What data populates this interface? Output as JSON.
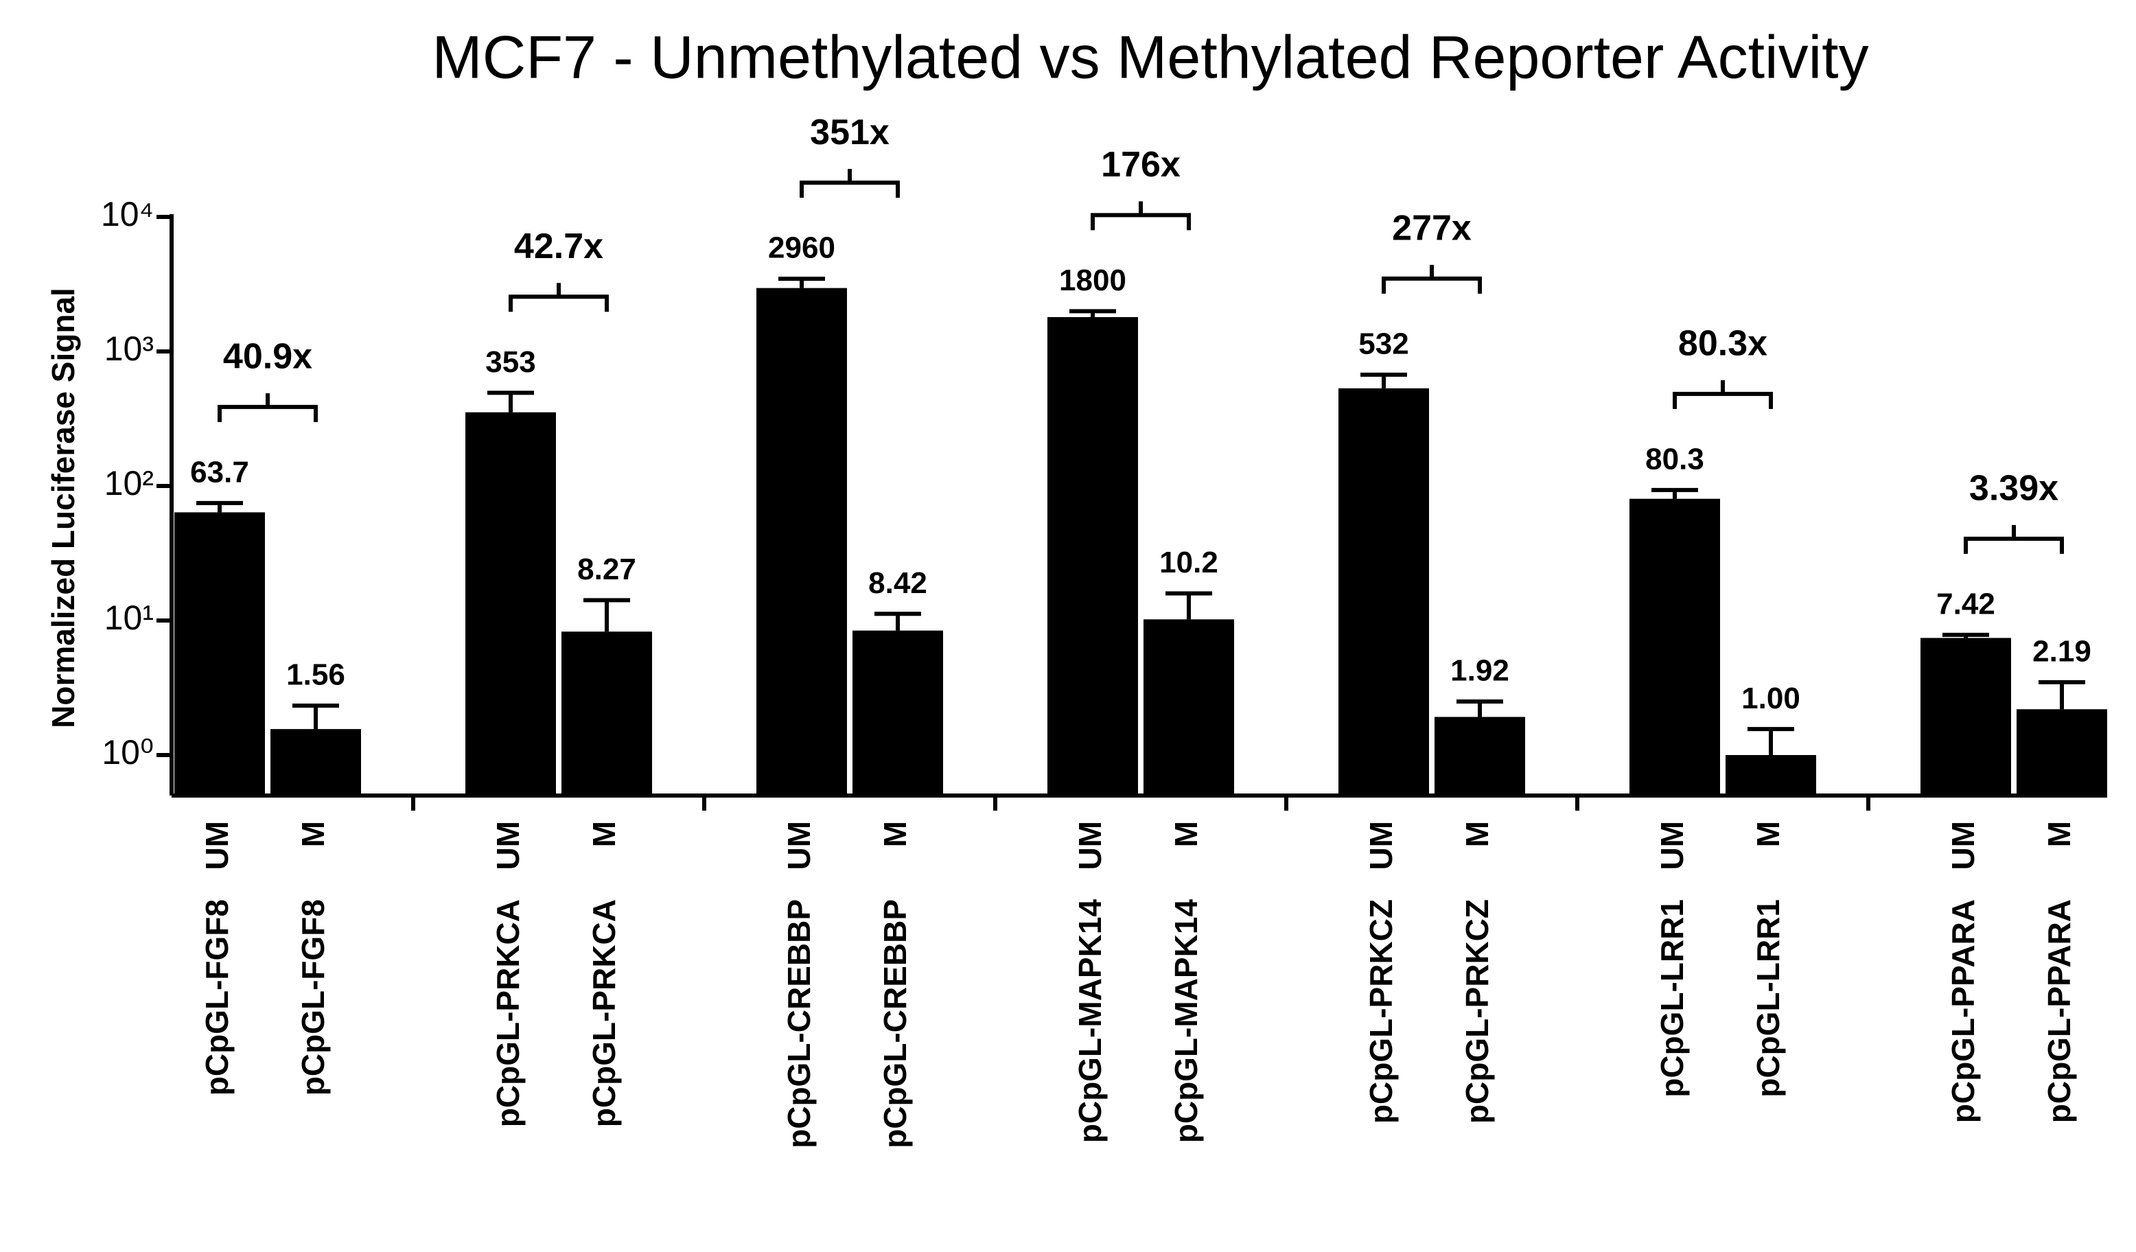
{
  "chart_data": {
    "type": "bar",
    "title": "MCF7 - Unmethylated vs Methylated Reporter Activity",
    "y_label": "Normalized Luciferase Signal",
    "log_scale": true,
    "color": "#000000",
    "categories": [
      "pCpGL-FGF8",
      "pCpGL-FGF8",
      "pCpGL-PRKCA",
      "pCpGL-PRKCA",
      "pCpGL-CREBBP",
      "pCpGL-CREBBP",
      "pCpGL-MAPK14",
      "pCpGL-MAPK14",
      "pCpGL-PRKCZ",
      "pCpGL-PRKCZ",
      "pCpGL-LRR1",
      "pCpGL-LRR1",
      "pCpGL-PPARA",
      "pCpGL-PPARA"
    ],
    "conditions": [
      "UM",
      "M",
      "UM",
      "M",
      "UM",
      "M",
      "UM",
      "M",
      "UM",
      "M",
      "UM",
      "M",
      "UM",
      "M"
    ],
    "values": [
      63.7,
      1.56,
      353,
      8.27,
      2960,
      8.42,
      1800,
      10.2,
      532,
      1.92,
      80.3,
      1.0,
      7.42,
      2.19
    ],
    "value_labels": [
      "63.7",
      "1.56",
      "353",
      "8.27",
      "2960",
      "8.42",
      "1800",
      "10.2",
      "532",
      "1.92",
      "80.3",
      "1.00",
      "7.42",
      "2.19"
    ],
    "errors": [
      11,
      0.77,
      140,
      5.9,
      510,
      2.8,
      190,
      5.7,
      140,
      0.58,
      13,
      0.56,
      0.4,
      1.29
    ],
    "fold_changes": [
      "40.9x",
      "42.7x",
      "351x",
      "176x",
      "277x",
      "80.3x",
      "3.39x"
    ],
    "ylim": [
      0.5,
      10000
    ],
    "yticks": [
      {
        "value": 1,
        "label": "10⁰"
      },
      {
        "value": 10,
        "label": "10¹"
      },
      {
        "value": 100,
        "label": "10²"
      },
      {
        "value": 1000,
        "label": "10³"
      },
      {
        "value": 10000,
        "label": "10⁴"
      }
    ]
  }
}
